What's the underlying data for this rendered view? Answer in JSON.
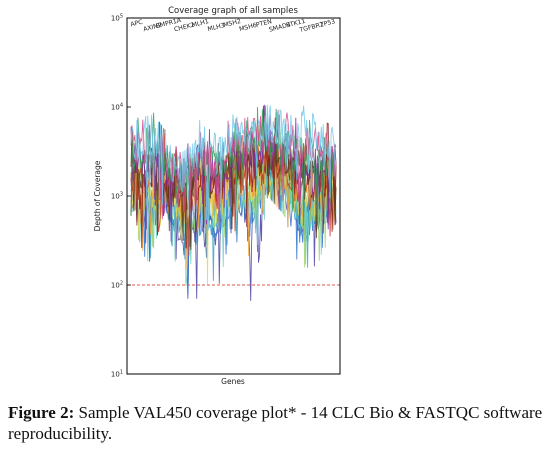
{
  "chart_data": {
    "type": "line",
    "title": "Coverage graph of all samples",
    "xlabel": "Genes",
    "ylabel": "Depth of Coverage",
    "yscale": "log",
    "ylim": [
      10,
      100000
    ],
    "yticks": [
      {
        "value": 10,
        "base": "10",
        "exp": "1"
      },
      {
        "value": 100,
        "base": "10",
        "exp": "2"
      },
      {
        "value": 1000,
        "base": "10",
        "exp": "3"
      },
      {
        "value": 10000,
        "base": "10",
        "exp": "4"
      },
      {
        "value": 100000,
        "base": "10",
        "exp": "5"
      }
    ],
    "genes": [
      "APC",
      "AXIN2",
      "BMPR1A",
      "CHEK2",
      "MLH1",
      "MLH3",
      "MSH2",
      "MSH6",
      "PTEN",
      "SMAD4",
      "STK11",
      "TGFBR2",
      "TP53"
    ],
    "threshold": {
      "value": 100,
      "color": "#e05a4a",
      "style": "dashed"
    },
    "series_count": 14,
    "coverage_profile": [
      {
        "gene": "APC",
        "median": 1300,
        "high": 5000,
        "low": 600
      },
      {
        "gene": "AXIN2",
        "median": 1300,
        "high": 9000,
        "low": 160
      },
      {
        "gene": "BMPR1A",
        "median": 1200,
        "high": 4500,
        "low": 700
      },
      {
        "gene": "CHEK2",
        "median": 800,
        "high": 2400,
        "low": 70
      },
      {
        "gene": "MLH1",
        "median": 1300,
        "high": 6000,
        "low": 70
      },
      {
        "gene": "MLH3",
        "median": 1000,
        "high": 4000,
        "low": 75
      },
      {
        "gene": "MSH2",
        "median": 1800,
        "high": 7000,
        "low": 500
      },
      {
        "gene": "MSH6",
        "median": 1700,
        "high": 8000,
        "low": 40
      },
      {
        "gene": "PTEN",
        "median": 2300,
        "high": 9000,
        "low": 1000
      },
      {
        "gene": "SMAD4",
        "median": 2000,
        "high": 7000,
        "low": 600
      },
      {
        "gene": "STK11",
        "median": 900,
        "high": 9000,
        "low": 120
      },
      {
        "gene": "TGFBR2",
        "median": 1300,
        "high": 6000,
        "low": 180
      },
      {
        "gene": "TP53",
        "median": 1200,
        "high": 5000,
        "low": 500
      }
    ],
    "series_colors": [
      "#4a3fa0",
      "#2a6fd1",
      "#3aa0c8",
      "#6fd0c0",
      "#9bd36a",
      "#e8d54a",
      "#f0a030",
      "#c0392b",
      "#8b1a1a",
      "#5a3a1a",
      "#7a2fa0",
      "#2fa05a",
      "#d04a8a",
      "#70c8e8"
    ]
  },
  "caption": {
    "label": "Figure 2:",
    "text": " Sample VAL450 coverage plot* - 14 CLC Bio & FASTQC software reproducibility."
  }
}
